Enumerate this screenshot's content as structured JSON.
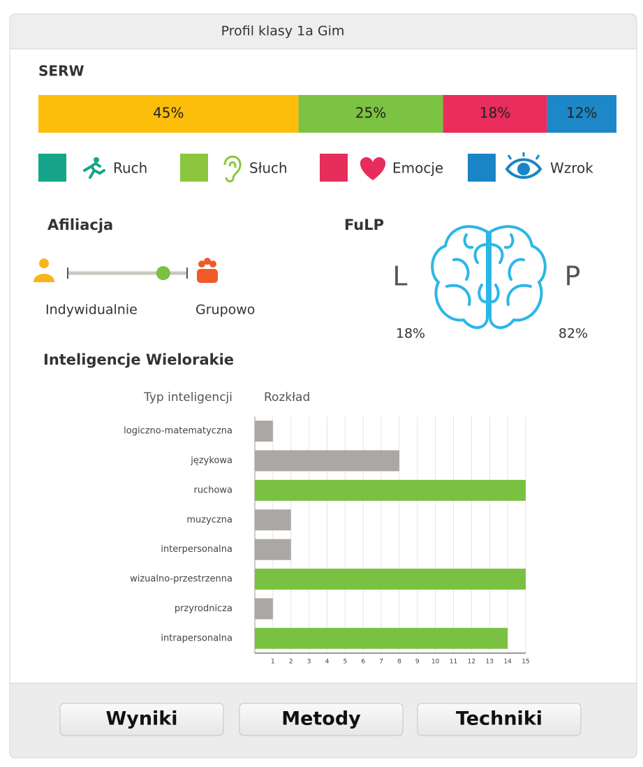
{
  "header": {
    "title": "Profil klasy 1a Gim"
  },
  "serw": {
    "title": "SERW",
    "values": [
      45,
      25,
      18,
      12
    ],
    "value_labels": [
      "45%",
      "25%",
      "18%",
      "12%"
    ],
    "colors": [
      "#fcbd0b",
      "#7cc243",
      "#e92d5c",
      "#1d87c7"
    ],
    "legend": [
      {
        "name": "Ruch",
        "color": "#16a58a"
      },
      {
        "name": "Słuch",
        "color": "#8cc63f"
      },
      {
        "name": "Emocje",
        "color": "#e62d5b"
      },
      {
        "name": "Wzrok",
        "color": "#1a85c6"
      }
    ]
  },
  "affiliation": {
    "title": "Afiliacja",
    "left_label": "Indywidualnie",
    "right_label": "Grupowo",
    "value": 0.8,
    "range": [
      0,
      1
    ]
  },
  "fulp": {
    "title": "FuLP",
    "left": {
      "letter": "L",
      "label": "18%"
    },
    "right": {
      "letter": "P",
      "label": "82%"
    }
  },
  "chart_data": {
    "type": "bar",
    "orientation": "horizontal",
    "title": "Inteligencje Wielorakie",
    "category_header": "Typ inteligencji",
    "value_header": "Rozkład",
    "categories": [
      "logiczno-matematyczna",
      "językowa",
      "ruchowa",
      "muzyczna",
      "interpersonalna",
      "wizualno-przestrzenna",
      "przyrodnicza",
      "intrapersonalna"
    ],
    "values": [
      1,
      8,
      15,
      2,
      2,
      15,
      1,
      14
    ],
    "colors": [
      "#aba7a4",
      "#aba7a4",
      "#7ac143",
      "#aba7a4",
      "#aba7a4",
      "#7ac143",
      "#aba7a4",
      "#7ac143"
    ],
    "xlim": [
      0,
      15
    ],
    "xticks": [
      1,
      2,
      3,
      4,
      5,
      6,
      7,
      8,
      9,
      10,
      11,
      12,
      13,
      14,
      15
    ],
    "grid": true
  },
  "buttons": [
    "Wyniki",
    "Metody",
    "Techniki"
  ]
}
